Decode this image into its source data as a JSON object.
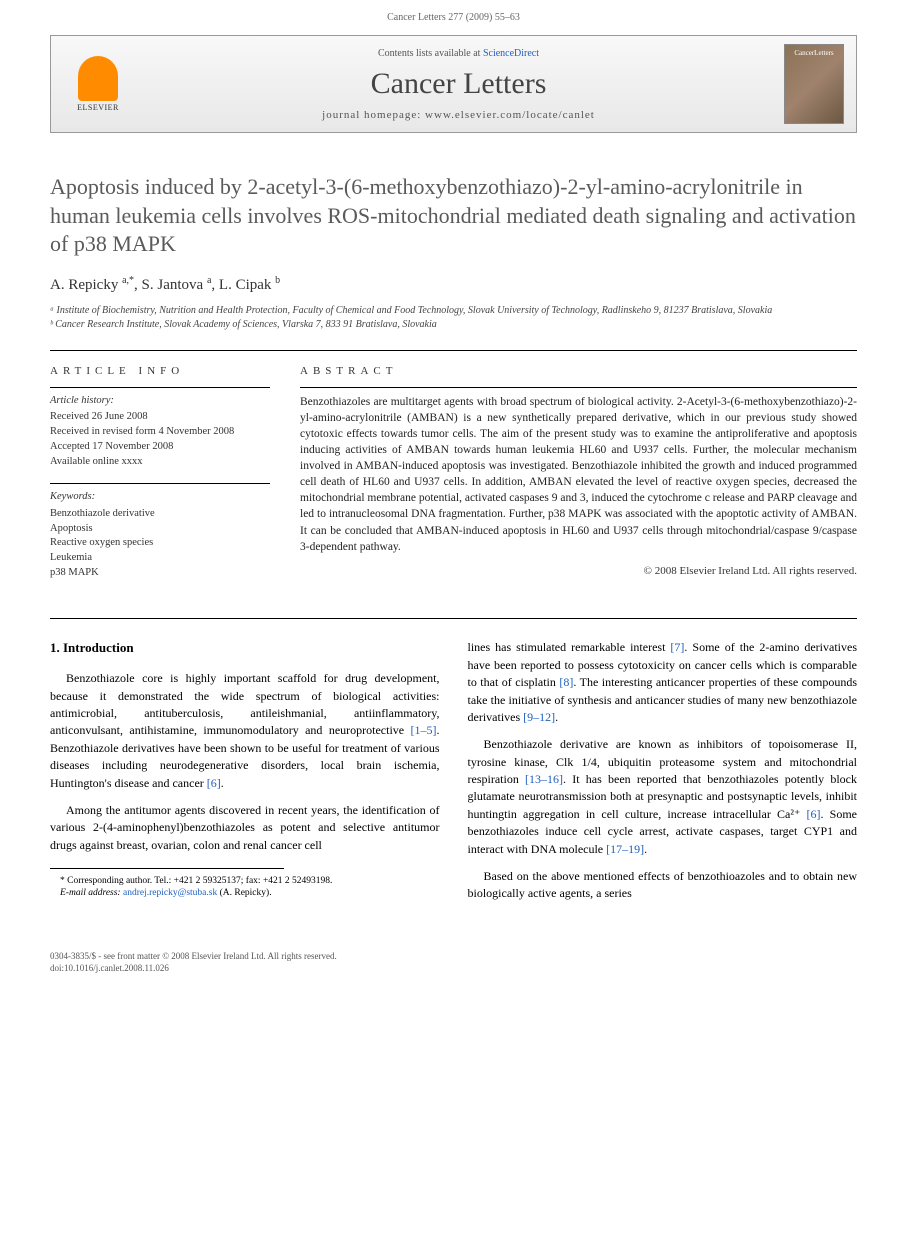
{
  "running_header": "Cancer Letters 277 (2009) 55–63",
  "masthead": {
    "publisher": "ELSEVIER",
    "contents_prefix": "Contents lists available at ",
    "contents_link": "ScienceDirect",
    "journal": "Cancer Letters",
    "homepage_label": "journal homepage: www.elsevier.com/locate/canlet",
    "cover_label": "CancerLetters"
  },
  "title": "Apoptosis induced by 2-acetyl-3-(6-methoxybenzothiazo)-2-yl-amino-acrylonitrile in human leukemia cells involves ROS-mitochondrial mediated death signaling and activation of p38 MAPK",
  "authors_html": "A. Repicky <sup>a,*</sup>, S. Jantova <sup>a</sup>, L. Cipak <sup>b</sup>",
  "affiliations": [
    "ᵃ Institute of Biochemistry, Nutrition and Health Protection, Faculty of Chemical and Food Technology, Slovak University of Technology, Radlinskeho 9, 81237 Bratislava, Slovakia",
    "ᵇ Cancer Research Institute, Slovak Academy of Sciences, Vlarska 7, 833 91 Bratislava, Slovakia"
  ],
  "info": {
    "heading": "ARTICLE INFO",
    "history_title": "Article history:",
    "history": [
      "Received 26 June 2008",
      "Received in revised form 4 November 2008",
      "Accepted 17 November 2008",
      "Available online xxxx"
    ],
    "keywords_title": "Keywords:",
    "keywords": [
      "Benzothiazole derivative",
      "Apoptosis",
      "Reactive oxygen species",
      "Leukemia",
      "p38 MAPK"
    ]
  },
  "abstract": {
    "heading": "ABSTRACT",
    "text": "Benzothiazoles are multitarget agents with broad spectrum of biological activity. 2-Acetyl-3-(6-methoxybenzothiazo)-2-yl-amino-acrylonitrile (AMBAN) is a new synthetically prepared derivative, which in our previous study showed cytotoxic effects towards tumor cells. The aim of the present study was to examine the antiproliferative and apoptosis inducing activities of AMBAN towards human leukemia HL60 and U937 cells. Further, the molecular mechanism involved in AMBAN-induced apoptosis was investigated. Benzothiazole inhibited the growth and induced programmed cell death of HL60 and U937 cells. In addition, AMBAN elevated the level of reactive oxygen species, decreased the mitochondrial membrane potential, activated caspases 9 and 3, induced the cytochrome c release and PARP cleavage and led to intranucleosomal DNA fragmentation. Further, p38 MAPK was associated with the apoptotic activity of AMBAN. It can be concluded that AMBAN-induced apoptosis in HL60 and U937 cells through mitochondrial/caspase 9/caspase 3-dependent pathway.",
    "copyright": "© 2008 Elsevier Ireland Ltd. All rights reserved."
  },
  "intro": {
    "heading": "1. Introduction",
    "p1": "Benzothiazole core is highly important scaffold for drug development, because it demonstrated the wide spectrum of biological activities: antimicrobial, antituberculosis, antileishmanial, antiinflammatory, anticonvulsant, antihistamine, immunomodulatory and neuroprotective ",
    "p1_ref": "[1–5]",
    "p1_cont": ". Benzothiazole derivatives have been shown to be useful for treatment of various diseases including neurodegenerative disorders, local brain ischemia, Huntington's disease and cancer ",
    "p1_ref2": "[6]",
    "p1_end": ".",
    "p2": "Among the antitumor agents discovered in recent years, the identification of various 2-(4-aminophenyl)benzothiazoles as potent and selective antitumor drugs against breast, ovarian, colon and renal cancer cell",
    "p3": "lines has stimulated remarkable interest ",
    "p3_ref": "[7]",
    "p3_cont": ". Some of the 2-amino derivatives have been reported to possess cytotoxicity on cancer cells which is comparable to that of cisplatin ",
    "p3_ref2": "[8]",
    "p3_cont2": ". The interesting anticancer properties of these compounds take the initiative of synthesis and anticancer studies of many new benzothiazole derivatives ",
    "p3_ref3": "[9–12]",
    "p3_end": ".",
    "p4": "Benzothiazole derivative are known as inhibitors of topoisomerase II, tyrosine kinase, Clk 1/4, ubiquitin proteasome system and mitochondrial respiration ",
    "p4_ref": "[13–16]",
    "p4_cont": ". It has been reported that benzothiazoles potently block glutamate neurotransmission both at presynaptic and postsynaptic levels, inhibit huntingtin aggregation in cell culture, increase intracellular Ca²⁺ ",
    "p4_ref2": "[6]",
    "p4_cont2": ". Some benzothiazoles induce cell cycle arrest, activate caspases, target CYP1 and interact with DNA molecule ",
    "p4_ref3": "[17–19]",
    "p4_end": ".",
    "p5": "Based on the above mentioned effects of benzothioazoles and to obtain new biologically active agents, a series"
  },
  "footnote": {
    "text": "* Corresponding author. Tel.: +421 2 59325137; fax: +421 2 52493198.",
    "email_label": "E-mail address: ",
    "email": "andrej.repicky@stuba.sk",
    "email_suffix": " (A. Repicky)."
  },
  "footer": {
    "line1": "0304-3835/$ - see front matter © 2008 Elsevier Ireland Ltd. All rights reserved.",
    "line2": "doi:10.1016/j.canlet.2008.11.026"
  }
}
